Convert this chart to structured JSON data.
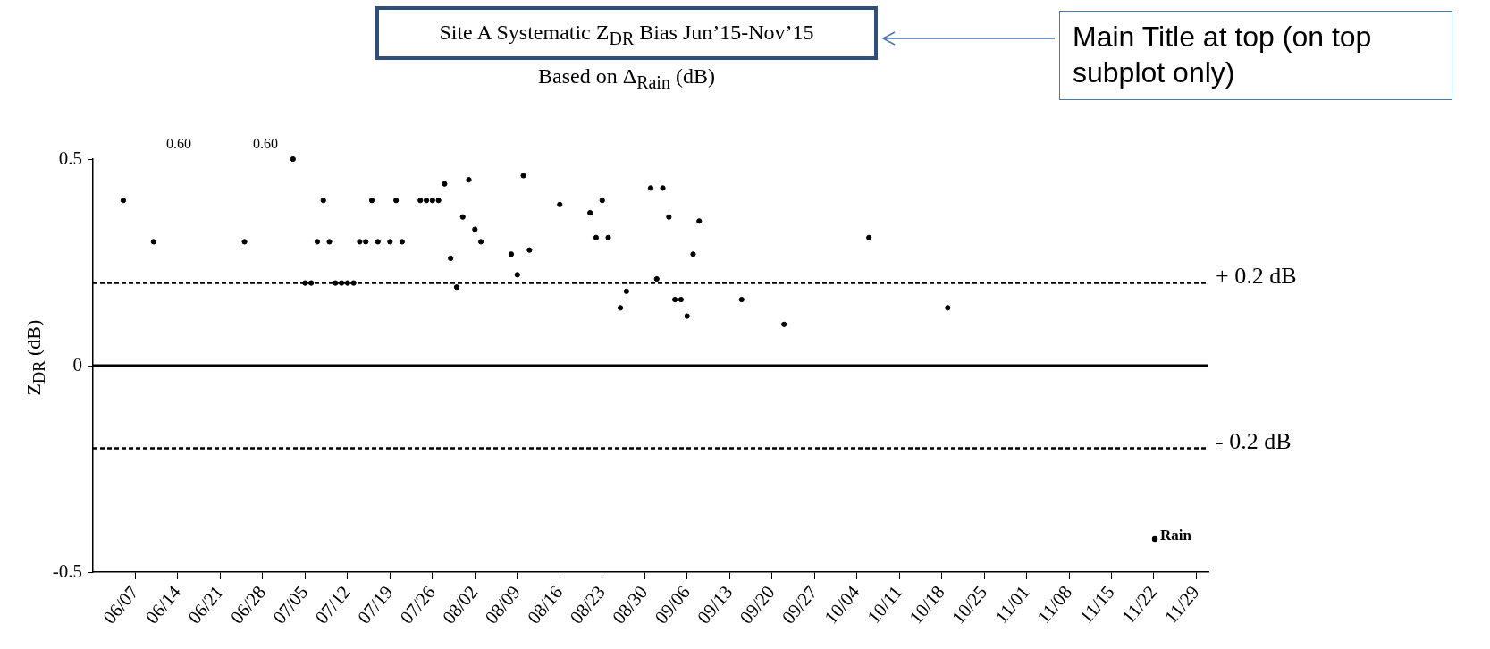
{
  "chart_data": {
    "type": "scatter",
    "title": "Site A Systematic Z$_{DR}$ Bias Jun’15-Nov’15",
    "subtitle": "Based on Δ$_{Rain}$ (dB)",
    "ylabel": "Z$_{DR}$ (dB)",
    "annotations": [
      "0.60",
      "0.60",
      "Main Title at top (on top subplot only)"
    ],
    "series": [
      {
        "name": "Rain",
        "color": "#000000",
        "x": [
          "2015-06-05",
          "2015-06-10",
          "2015-06-25",
          "2015-07-03",
          "2015-07-05",
          "2015-07-06",
          "2015-07-07",
          "2015-07-08",
          "2015-07-09",
          "2015-07-10",
          "2015-07-11",
          "2015-07-12",
          "2015-07-13",
          "2015-07-14",
          "2015-07-15",
          "2015-07-16",
          "2015-07-17",
          "2015-07-19",
          "2015-07-20",
          "2015-07-21",
          "2015-07-24",
          "2015-07-25",
          "2015-07-26",
          "2015-07-27",
          "2015-07-28",
          "2015-07-29",
          "2015-07-30",
          "2015-07-31",
          "2015-08-01",
          "2015-08-02",
          "2015-08-03",
          "2015-08-08",
          "2015-08-09",
          "2015-08-10",
          "2015-08-11",
          "2015-08-16",
          "2015-08-21",
          "2015-08-22",
          "2015-08-23",
          "2015-08-24",
          "2015-08-26",
          "2015-08-27",
          "2015-08-31",
          "2015-09-01",
          "2015-09-02",
          "2015-09-03",
          "2015-09-04",
          "2015-09-05",
          "2015-09-06",
          "2015-09-07",
          "2015-09-08",
          "2015-09-15",
          "2015-09-22",
          "2015-10-06",
          "2015-10-19"
        ],
        "values": [
          0.4,
          0.3,
          0.3,
          0.5,
          0.2,
          0.2,
          0.3,
          0.4,
          0.3,
          0.2,
          0.2,
          0.2,
          0.2,
          0.3,
          0.3,
          0.4,
          0.3,
          0.3,
          0.4,
          0.3,
          0.4,
          0.4,
          0.4,
          0.4,
          0.44,
          0.26,
          0.19,
          0.36,
          0.45,
          0.33,
          0.3,
          0.27,
          0.22,
          0.46,
          0.28,
          0.39,
          0.37,
          0.31,
          0.4,
          0.31,
          0.14,
          0.18,
          0.43,
          0.21,
          0.43,
          0.36,
          0.16,
          0.16,
          0.12,
          0.27,
          0.35,
          0.16,
          0.1,
          0.31,
          0.14
        ]
      }
    ],
    "xlim": [
      "2015-05-31",
      "2015-12-01"
    ],
    "xticks": [
      {
        "value": "2015-06-07",
        "label": "06/07"
      },
      {
        "value": "2015-06-14",
        "label": "06/14"
      },
      {
        "value": "2015-06-21",
        "label": "06/21"
      },
      {
        "value": "2015-06-28",
        "label": "06/28"
      },
      {
        "value": "2015-07-05",
        "label": "07/05"
      },
      {
        "value": "2015-07-12",
        "label": "07/12"
      },
      {
        "value": "2015-07-19",
        "label": "07/19"
      },
      {
        "value": "2015-07-26",
        "label": "07/26"
      },
      {
        "value": "2015-08-02",
        "label": "08/02"
      },
      {
        "value": "2015-08-09",
        "label": "08/09"
      },
      {
        "value": "2015-08-16",
        "label": "08/16"
      },
      {
        "value": "2015-08-23",
        "label": "08/23"
      },
      {
        "value": "2015-08-30",
        "label": "08/30"
      },
      {
        "value": "2015-09-06",
        "label": "09/06"
      },
      {
        "value": "2015-09-13",
        "label": "09/13"
      },
      {
        "value": "2015-09-20",
        "label": "09/20"
      },
      {
        "value": "2015-09-27",
        "label": "09/27"
      },
      {
        "value": "2015-10-04",
        "label": "10/04"
      },
      {
        "value": "2015-10-11",
        "label": "10/11"
      },
      {
        "value": "2015-10-18",
        "label": "10/18"
      },
      {
        "value": "2015-10-25",
        "label": "10/25"
      },
      {
        "value": "2015-11-01",
        "label": "11/01"
      },
      {
        "value": "2015-11-08",
        "label": "11/08"
      },
      {
        "value": "2015-11-15",
        "label": "11/15"
      },
      {
        "value": "2015-11-22",
        "label": "11/22"
      },
      {
        "value": "2015-11-29",
        "label": "11/29"
      }
    ],
    "ylim": [
      -0.5,
      0.5
    ],
    "yticks": [
      -0.5,
      0,
      0.5
    ],
    "ref_lines": [
      {
        "axis": "y",
        "value": 0.2,
        "label": "+ 0.2 dB",
        "line_style": "dashed",
        "color": "#000000"
      },
      {
        "axis": "y",
        "value": 0,
        "line_style": "solid",
        "color": "#000000"
      },
      {
        "axis": "y",
        "value": -0.2,
        "label": "- 0.2 dB",
        "line_style": "dashed",
        "color": "#000000"
      }
    ],
    "grid": false,
    "legend": "bottom right",
    "marker": "circle"
  }
}
